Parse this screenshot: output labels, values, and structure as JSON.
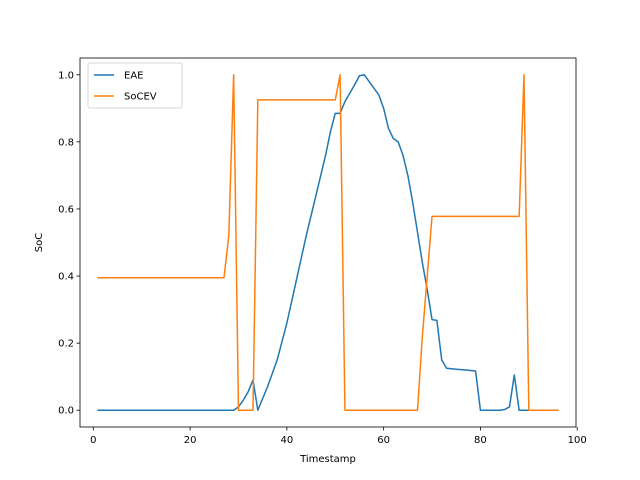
{
  "chart_data": {
    "type": "line",
    "title": "",
    "xlabel": "Timestamp",
    "ylabel": "SoC",
    "xlim": [
      -2.75,
      99.75
    ],
    "ylim": [
      -0.05,
      1.05
    ],
    "xticks": [
      0,
      20,
      40,
      60,
      80,
      100
    ],
    "yticks": [
      0.0,
      0.2,
      0.4,
      0.6,
      0.8,
      1.0
    ],
    "xtick_labels": [
      "0",
      "20",
      "40",
      "60",
      "80",
      "100"
    ],
    "ytick_labels": [
      "0.0",
      "0.2",
      "0.4",
      "0.6",
      "0.8",
      "1.0"
    ],
    "grid": false,
    "legend_position": "top-left",
    "series": [
      {
        "name": "EAE",
        "color": "#1f77b4",
        "points": [
          [
            1,
            0.0
          ],
          [
            5,
            0.0
          ],
          [
            10,
            0.0
          ],
          [
            15,
            0.0
          ],
          [
            20,
            0.0
          ],
          [
            25,
            0.0
          ],
          [
            29,
            0.0
          ],
          [
            30,
            0.01
          ],
          [
            31,
            0.03
          ],
          [
            32,
            0.055
          ],
          [
            33,
            0.09
          ],
          [
            34,
            0.0
          ],
          [
            36,
            0.07
          ],
          [
            38,
            0.15
          ],
          [
            40,
            0.26
          ],
          [
            42,
            0.39
          ],
          [
            44,
            0.52
          ],
          [
            46,
            0.64
          ],
          [
            48,
            0.76
          ],
          [
            49,
            0.83
          ],
          [
            50,
            0.885
          ],
          [
            51,
            0.885
          ],
          [
            52,
            0.92
          ],
          [
            54,
            0.97
          ],
          [
            55,
            0.997
          ],
          [
            56,
            1.0
          ],
          [
            58,
            0.96
          ],
          [
            59,
            0.94
          ],
          [
            60,
            0.9
          ],
          [
            61,
            0.84
          ],
          [
            62,
            0.81
          ],
          [
            63,
            0.8
          ],
          [
            64,
            0.76
          ],
          [
            65,
            0.7
          ],
          [
            66,
            0.62
          ],
          [
            67,
            0.53
          ],
          [
            68,
            0.44
          ],
          [
            69,
            0.36
          ],
          [
            70,
            0.27
          ],
          [
            71,
            0.268
          ],
          [
            72,
            0.15
          ],
          [
            73,
            0.125
          ],
          [
            75,
            0.122
          ],
          [
            77,
            0.12
          ],
          [
            79,
            0.117
          ],
          [
            80,
            0.0
          ],
          [
            82,
            0.0
          ],
          [
            84,
            0.0
          ],
          [
            85,
            0.002
          ],
          [
            86,
            0.01
          ],
          [
            87,
            0.105
          ],
          [
            88,
            0.0
          ],
          [
            90,
            0.0
          ],
          [
            93,
            0.0
          ],
          [
            96,
            0.0
          ]
        ]
      },
      {
        "name": "SoCEV",
        "color": "#ff7f0e",
        "points": [
          [
            1,
            0.395
          ],
          [
            10,
            0.395
          ],
          [
            20,
            0.395
          ],
          [
            27,
            0.395
          ],
          [
            28,
            0.52
          ],
          [
            29,
            1.0
          ],
          [
            30,
            0.0
          ],
          [
            33,
            0.0
          ],
          [
            34,
            0.925
          ],
          [
            40,
            0.925
          ],
          [
            45,
            0.925
          ],
          [
            50,
            0.925
          ],
          [
            51,
            1.0
          ],
          [
            52,
            0.0
          ],
          [
            55,
            0.0
          ],
          [
            60,
            0.0
          ],
          [
            67,
            0.0
          ],
          [
            68,
            0.22
          ],
          [
            70,
            0.578
          ],
          [
            75,
            0.578
          ],
          [
            80,
            0.578
          ],
          [
            85,
            0.578
          ],
          [
            88,
            0.578
          ],
          [
            89,
            1.0
          ],
          [
            90,
            0.0
          ],
          [
            93,
            0.0
          ],
          [
            96,
            0.0
          ]
        ]
      }
    ]
  }
}
